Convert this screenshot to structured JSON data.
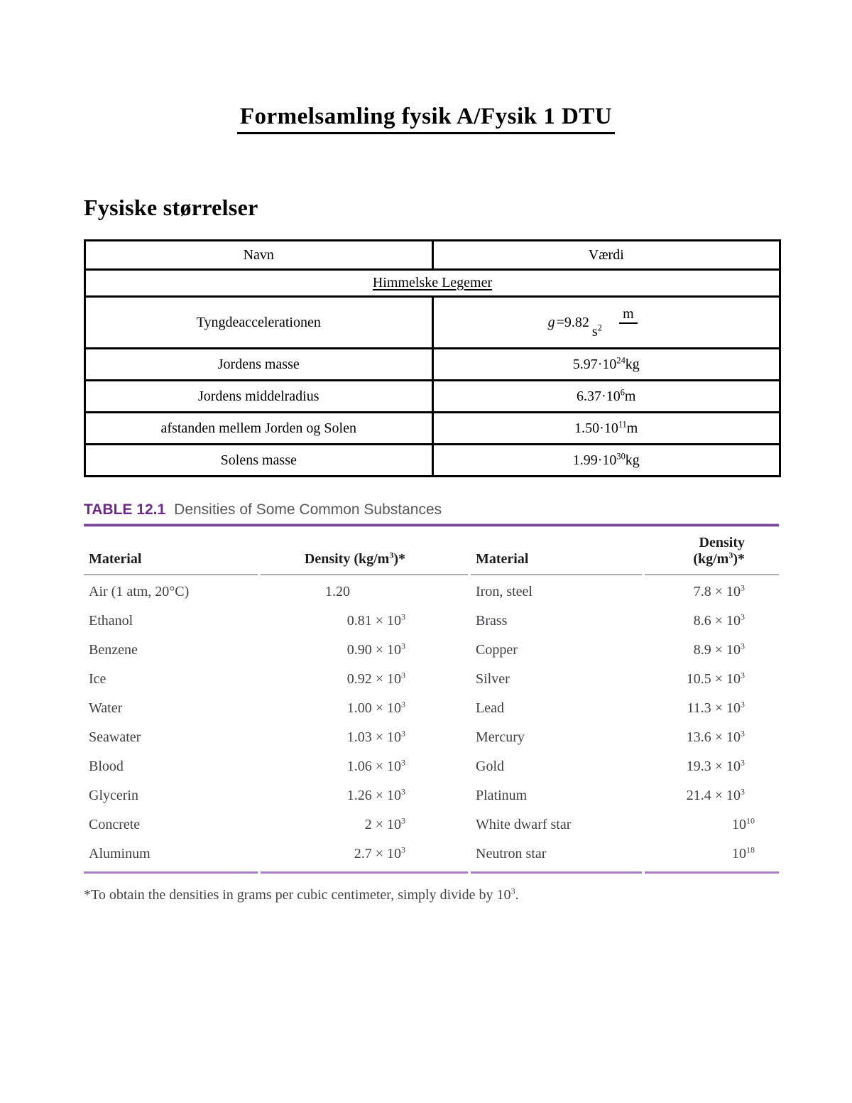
{
  "page": {
    "title": "Formelsamling fysik A/Fysik 1 DTU",
    "section_heading": "Fysiske størrelser"
  },
  "constants_table": {
    "headers": {
      "name": "Navn",
      "value": "Værdi"
    },
    "group_header": "Himmelske Legemer",
    "gravity": {
      "name": "Tyngdeaccelerationen",
      "symbol": "g",
      "coefficient": "=9.82",
      "frac_numerator": "m",
      "frac_denominator": "s",
      "frac_denominator_exp": "2"
    },
    "rows": [
      {
        "name": "Jordens masse",
        "base": "5.97·10",
        "exp": "24",
        "unit": "kg"
      },
      {
        "name": "Jordens middelradius",
        "base": "6.37·10",
        "exp": "6",
        "unit": "m"
      },
      {
        "name": "afstanden mellem Jorden og Solen",
        "base": "1.50·10",
        "exp": "11",
        "unit": "m"
      },
      {
        "name": "Solens masse",
        "base": "1.99·10",
        "exp": "30",
        "unit": "kg"
      }
    ]
  },
  "density_table": {
    "label": "TABLE 12.1",
    "title": "Densities of Some Common Substances",
    "accent_color": "#6b2b85",
    "rule_color_top": "#7d4b9e",
    "rule_color_bottom": "#a87fc5",
    "col_headers": {
      "material": "Material",
      "density_prefix": "Density (kg/m",
      "density_exp": "3",
      "density_suffix": ")*"
    },
    "rows": [
      {
        "left": {
          "material": "Air (1 atm, 20°C)",
          "value": "1.20",
          "exp": ""
        },
        "right": {
          "material": "Iron, steel",
          "value": "7.8 × 10",
          "exp": "3"
        }
      },
      {
        "left": {
          "material": "Ethanol",
          "value": "0.81 × 10",
          "exp": "3"
        },
        "right": {
          "material": "Brass",
          "value": "8.6 × 10",
          "exp": "3"
        }
      },
      {
        "left": {
          "material": "Benzene",
          "value": "0.90 × 10",
          "exp": "3"
        },
        "right": {
          "material": "Copper",
          "value": "8.9 × 10",
          "exp": "3"
        }
      },
      {
        "left": {
          "material": "Ice",
          "value": "0.92 × 10",
          "exp": "3"
        },
        "right": {
          "material": "Silver",
          "value": "10.5 × 10",
          "exp": "3"
        }
      },
      {
        "left": {
          "material": "Water",
          "value": "1.00 × 10",
          "exp": "3"
        },
        "right": {
          "material": "Lead",
          "value": "11.3 × 10",
          "exp": "3"
        }
      },
      {
        "left": {
          "material": "Seawater",
          "value": "1.03 × 10",
          "exp": "3"
        },
        "right": {
          "material": "Mercury",
          "value": "13.6 × 10",
          "exp": "3"
        }
      },
      {
        "left": {
          "material": "Blood",
          "value": "1.06 × 10",
          "exp": "3"
        },
        "right": {
          "material": "Gold",
          "value": "19.3 × 10",
          "exp": "3"
        }
      },
      {
        "left": {
          "material": "Glycerin",
          "value": "1.26 × 10",
          "exp": "3"
        },
        "right": {
          "material": "Platinum",
          "value": "21.4 × 10",
          "exp": "3"
        }
      },
      {
        "left": {
          "material": "Concrete",
          "value": "2 × 10",
          "exp": "3"
        },
        "right": {
          "material": "White dwarf star",
          "value": "10",
          "exp": "10"
        }
      },
      {
        "left": {
          "material": "Aluminum",
          "value": "2.7 × 10",
          "exp": "3"
        },
        "right": {
          "material": "Neutron star",
          "value": "10",
          "exp": "18"
        }
      }
    ],
    "footnote": {
      "text": "*To obtain the densities in grams per cubic centimeter, simply divide by 10",
      "exp": "3",
      "end": "."
    }
  }
}
